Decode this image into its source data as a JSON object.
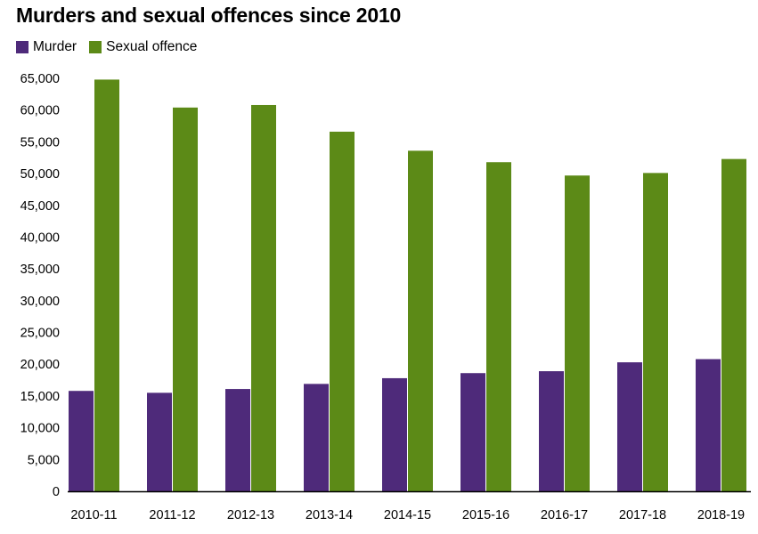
{
  "chart_data": {
    "type": "bar",
    "title": "Murders and sexual offences since 2010",
    "categories": [
      "2010-11",
      "2011-12",
      "2012-13",
      "2013-14",
      "2014-15",
      "2015-16",
      "2016-17",
      "2017-18",
      "2018-19"
    ],
    "series": [
      {
        "name": "Murder",
        "color": "#4e2a7a",
        "values": [
          15800,
          15500,
          16100,
          16900,
          17800,
          18600,
          18900,
          20300,
          20800
        ]
      },
      {
        "name": "Sexual offence",
        "color": "#5c8a17",
        "values": [
          64800,
          60400,
          60800,
          56600,
          53600,
          51800,
          49700,
          50100,
          52300
        ]
      }
    ],
    "yticks": [
      "0",
      "5,000",
      "10,000",
      "15,000",
      "20,000",
      "25,000",
      "30,000",
      "35,000",
      "40,000",
      "45,000",
      "50,000",
      "55,000",
      "60,000",
      "65,000"
    ],
    "ylim": [
      0,
      65000
    ],
    "xlabel": "",
    "ylabel": "",
    "legend_position": "top-left",
    "grid": false
  }
}
